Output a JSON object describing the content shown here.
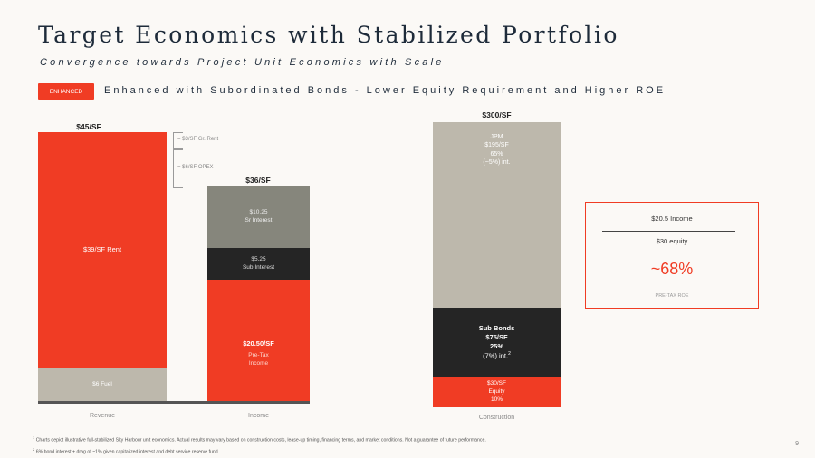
{
  "title": "Target Economics with Stabilized Portfolio",
  "subtitle": "Convergence towards Project Unit Economics with Scale",
  "badge": "ENHANCED",
  "headline": "Enhanced with Subordinated Bonds - Lower Equity Requirement and Higher ROE",
  "revenue_bar": {
    "top_label": "$45/SF",
    "rent_label": "$39/SF Rent",
    "fuel_label": "$6 Fuel",
    "axis_label": "Revenue"
  },
  "annotations": {
    "gr_rent": "= $3/SF Gr. Rent",
    "opex": "= $6/SF OPEX"
  },
  "income_bar": {
    "top_label": "$36/SF",
    "sr_interest_value": "$10.25",
    "sr_interest_label": "Sr Interest",
    "sub_interest_value": "$5.25",
    "sub_interest_label": "Sub Interest",
    "pretax_value": "$20.50/SF",
    "pretax_label_1": "Pre-Tax",
    "pretax_label_2": "Income",
    "axis_label": "Income"
  },
  "construction_bar": {
    "top_label": "$300/SF",
    "jpm_name": "JPM",
    "jpm_value": "$195/SF",
    "jpm_pct": "65%",
    "jpm_rate": "(~5%) int.",
    "sub_name": "Sub Bonds",
    "sub_value": "$75/SF",
    "sub_pct": "25%",
    "sub_rate": "(7%) int.",
    "sub_sup": "2",
    "eq_value": "$30/SF",
    "eq_name": "Equity",
    "eq_pct": "10%",
    "axis_label": "Construction"
  },
  "roe": {
    "numerator": "$20.5 Income",
    "denominator": "$30 equity",
    "value": "~68%",
    "label": "PRE-TAX ROE"
  },
  "footnotes": {
    "f1_sup": "1",
    "f1": "Charts depict illustrative full-stabilized Sky Harbour unit economics. Actual results may vary based on construction costs, lease-up timing, financing terms, and market conditions. Not a guarantee of future performance.",
    "f2_sup": "2",
    "f2": "6% bond interest + drag of ~1% given capitalized interest and debt service reserve fund"
  },
  "page_number": "9",
  "colors": {
    "accent": "#f03c24",
    "navy": "#1e2b3a",
    "beige": "#bdb8ac",
    "dark_gray": "#86867c",
    "black": "#252525"
  }
}
